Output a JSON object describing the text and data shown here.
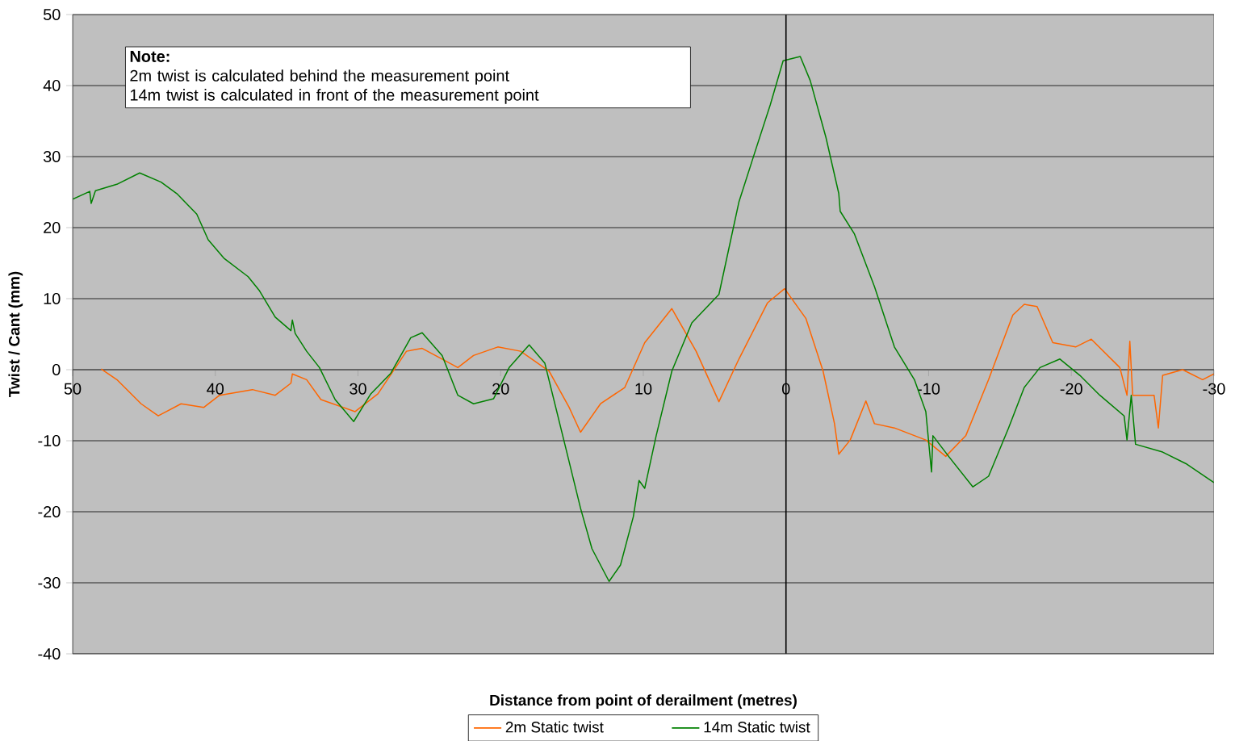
{
  "chart_data": {
    "type": "line",
    "xlabel": "Distance from point of derailment (metres)",
    "ylabel": "Twist / Cant (mm)",
    "annotations": [
      "Note:",
      "2m twist is calculated behind the measurement point",
      "14m twist is calculated in front of the measurement point"
    ],
    "xlim": [
      50,
      -30
    ],
    "xticks": [
      50,
      40,
      30,
      20,
      10,
      0,
      -10,
      -20,
      -30
    ],
    "ylim": [
      -40,
      50
    ],
    "yticks": [
      -40,
      -30,
      -20,
      -10,
      0,
      10,
      20,
      30,
      40,
      50
    ],
    "grid": "y",
    "legend": "bottom",
    "ref_lines": [
      {
        "axis": "x",
        "value": 0,
        "color": "#000000"
      }
    ],
    "series": [
      {
        "name": "2m Static twist",
        "color": "#ff6600",
        "x": [
          48.0,
          46.9,
          45.2,
          44.0,
          42.4,
          40.8,
          39.7,
          37.4,
          35.8,
          34.7,
          34.6,
          33.6,
          32.6,
          30.2,
          28.6,
          26.6,
          25.5,
          24.1,
          23.0,
          21.9,
          20.2,
          18.6,
          16.6,
          15.2,
          14.4,
          13.0,
          11.3,
          9.9,
          8.0,
          6.3,
          4.7,
          3.3,
          1.3,
          0.1,
          -1.4,
          -2.6,
          -3.4,
          -3.7,
          -4.5,
          -5.6,
          -6.2,
          -7.6,
          -9.8,
          -11.2,
          -12.6,
          -14.2,
          -15.9,
          -16.7,
          -17.6,
          -18.7,
          -20.3,
          -21.4,
          -23.4,
          -23.9,
          -24.1,
          -24.3,
          -25.8,
          -26.1,
          -26.4,
          -27.8,
          -29.2,
          -30
        ],
        "values": [
          0.1,
          -1.4,
          -4.8,
          -6.5,
          -4.8,
          -5.3,
          -3.6,
          -2.8,
          -3.6,
          -1.9,
          -0.6,
          -1.4,
          -4.2,
          -5.9,
          -3.4,
          2.6,
          3.0,
          1.5,
          0.3,
          2.0,
          3.2,
          2.6,
          -0.2,
          -5.3,
          -8.8,
          -4.8,
          -2.5,
          3.8,
          8.6,
          2.6,
          -4.5,
          1.5,
          9.4,
          11.4,
          7.2,
          -0.2,
          -7.6,
          -11.9,
          -9.9,
          -4.4,
          -7.6,
          -8.2,
          -9.9,
          -12.2,
          -9.3,
          -1.4,
          7.7,
          9.2,
          8.9,
          3.8,
          3.2,
          4.3,
          0.3,
          -3.6,
          4.0,
          -3.6,
          -3.6,
          -8.2,
          -0.8,
          0,
          -1.4,
          -0.6
        ]
      },
      {
        "name": "14m Static twist",
        "color": "#008000",
        "x": [
          50,
          48.8,
          48.7,
          48.4,
          46.9,
          45.3,
          43.8,
          42.7,
          41.3,
          40.5,
          39.4,
          37.7,
          36.9,
          35.8,
          34.7,
          34.6,
          34.4,
          33.6,
          32.7,
          31.6,
          30.3,
          29.1,
          27.7,
          26.3,
          25.5,
          24.1,
          23.0,
          21.9,
          20.5,
          19.4,
          18.0,
          16.9,
          15.5,
          14.4,
          13.6,
          12.4,
          11.6,
          10.7,
          10.3,
          9.9,
          9.1,
          8.0,
          6.6,
          4.7,
          3.3,
          2.2,
          1.1,
          0.2,
          -1.0,
          -1.7,
          -2.8,
          -3.7,
          -3.8,
          -4.8,
          -6.2,
          -7.6,
          -9.0,
          -9.8,
          -10.2,
          -10.3,
          -11.4,
          -13.1,
          -14.2,
          -15.6,
          -16.7,
          -17.8,
          -19.2,
          -20.6,
          -22.0,
          -23.7,
          -23.9,
          -24.2,
          -24.5,
          -26.4,
          -28.1,
          -30
        ],
        "values": [
          24.0,
          25.1,
          23.4,
          25.2,
          26.1,
          27.7,
          26.4,
          24.8,
          21.9,
          18.3,
          15.7,
          13.1,
          11.1,
          7.4,
          5.5,
          7.0,
          5.1,
          2.6,
          0.3,
          -4.2,
          -7.3,
          -3.4,
          -0.5,
          4.5,
          5.2,
          2.0,
          -3.6,
          -4.8,
          -4.1,
          0.3,
          3.5,
          0.9,
          -10.5,
          -19.5,
          -25.2,
          -29.8,
          -27.5,
          -20.7,
          -15.6,
          -16.7,
          -9.3,
          -0.2,
          6.6,
          10.6,
          23.6,
          30.5,
          37.3,
          43.5,
          44.1,
          40.7,
          32.7,
          24.8,
          22.3,
          19.1,
          11.7,
          3.2,
          -1.4,
          -5.9,
          -14.4,
          -9.3,
          -12.2,
          -16.5,
          -15.0,
          -8.2,
          -2.5,
          0.3,
          1.5,
          -0.8,
          -3.6,
          -6.5,
          -9.9,
          -3.6,
          -10.5,
          -11.6,
          -13.3,
          -15.9
        ]
      }
    ]
  }
}
